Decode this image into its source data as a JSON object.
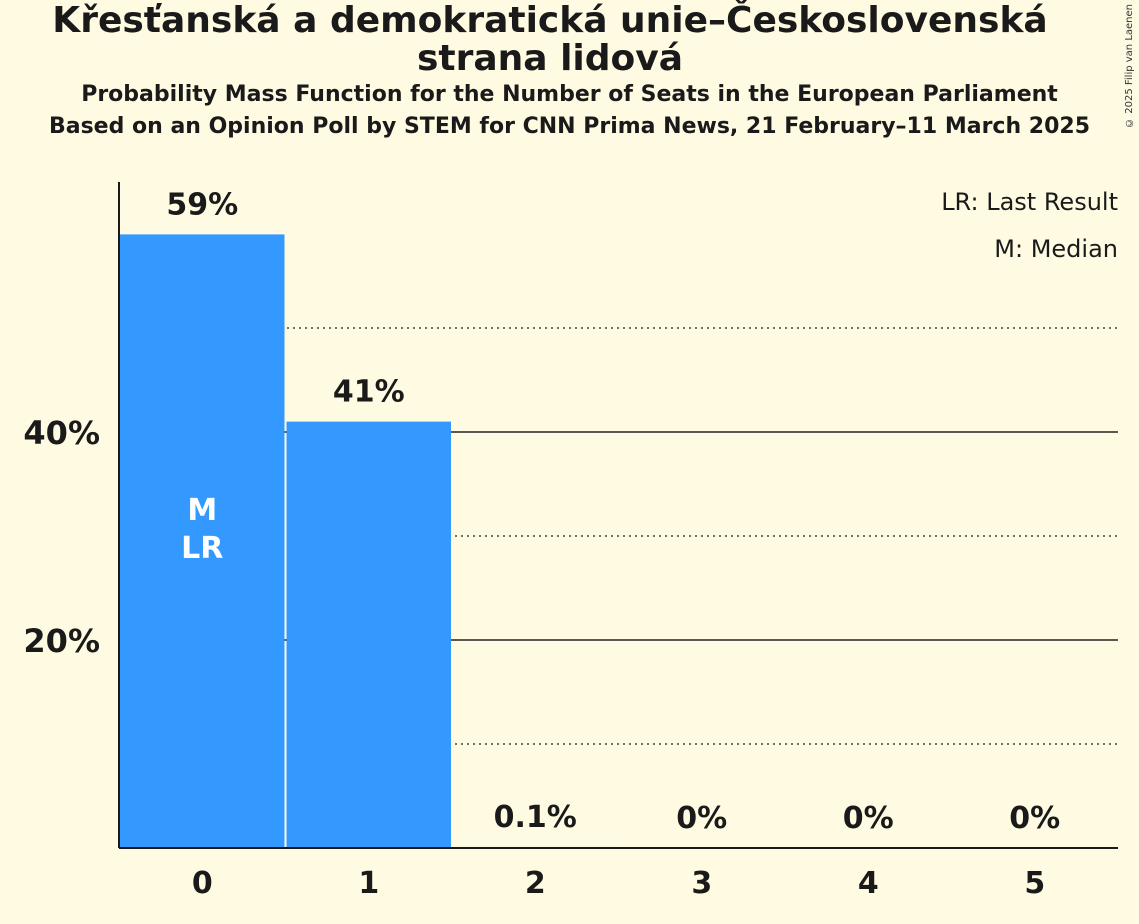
{
  "chart_data": {
    "type": "bar",
    "title": "Křesťanská a demokratická unie–Československá strana lidová",
    "subtitle": "Probability Mass Function for the Number of Seats in the European Parliament",
    "subtitle2": "Based on an Opinion Poll by STEM for CNN Prima News, 21 February–11 March 2025",
    "categories": [
      "0",
      "1",
      "2",
      "3",
      "4",
      "5"
    ],
    "values": [
      59,
      41,
      0.1,
      0,
      0,
      0
    ],
    "data_labels": [
      "59%",
      "41%",
      "0.1%",
      "0%",
      "0%",
      "0%"
    ],
    "ylim": [
      0,
      64
    ],
    "yticks": [
      {
        "value": 20,
        "label": "20%"
      },
      {
        "value": 40,
        "label": "40%"
      }
    ],
    "minor_gridlines": [
      10,
      30,
      50
    ],
    "bar_annotations": [
      {
        "category": "0",
        "lines": [
          "M",
          "LR"
        ]
      }
    ],
    "legend": [
      "LR: Last Result",
      "M: Median"
    ],
    "legend_position": "top-right",
    "bar_color": "#3399FF",
    "copyright": "© 2025 Filip van Laenen"
  }
}
